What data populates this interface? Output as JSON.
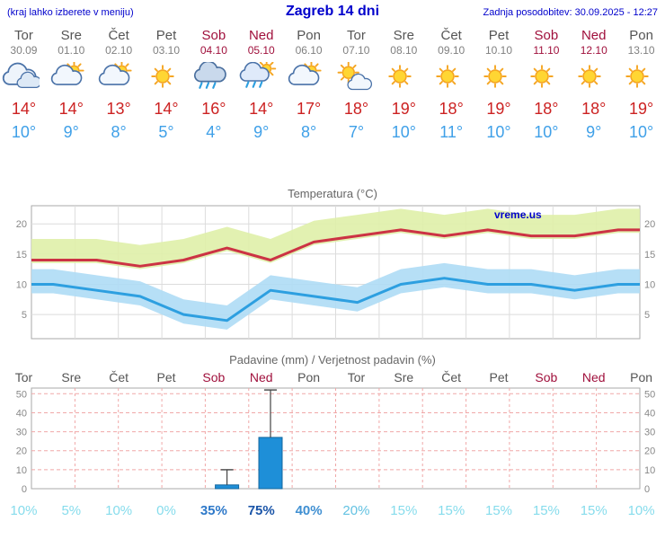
{
  "header": {
    "left_note": "(kraj lahko izberete v meniju)",
    "title": "Zagreb 14 dni",
    "updated": "Zadnja posodobitev: 30.09.2025 - 12:27"
  },
  "watermark": "vreme.us",
  "colors": {
    "header_blue": "#0000cc",
    "day_gray": "#555555",
    "weekend_red": "#a0103c",
    "date_gray": "#808080",
    "tmax_red": "#cc2222",
    "tmin_blue": "#3fa0e8",
    "chart_title_gray": "#666666",
    "grid_gray": "#dcdcdc",
    "axis_gray": "#888888",
    "plot_border": "#aaaaaa",
    "temp_max_line": "#cc3344",
    "temp_max_band": "#dff0a8",
    "temp_min_line": "#2d9fe0",
    "temp_min_band": "#aedcf5",
    "precip_bar": "#1e8fd8",
    "precip_bar_border": "#14679e",
    "precip_grid_red": "#f0a8a8",
    "whisker": "#444444"
  },
  "forecast": {
    "days": [
      {
        "name": "Tor",
        "date": "30.09",
        "weekend": false,
        "icon": "cloudy",
        "tmax_label": "14°",
        "tmin_label": "10°"
      },
      {
        "name": "Sre",
        "date": "01.10",
        "weekend": false,
        "icon": "partly-cloudy",
        "tmax_label": "14°",
        "tmin_label": "9°"
      },
      {
        "name": "Čet",
        "date": "02.10",
        "weekend": false,
        "icon": "partly-cloudy",
        "tmax_label": "13°",
        "tmin_label": "8°"
      },
      {
        "name": "Pet",
        "date": "03.10",
        "weekend": false,
        "icon": "sunny",
        "tmax_label": "14°",
        "tmin_label": "5°"
      },
      {
        "name": "Sob",
        "date": "04.10",
        "weekend": true,
        "icon": "rain",
        "tmax_label": "16°",
        "tmin_label": "4°"
      },
      {
        "name": "Ned",
        "date": "05.10",
        "weekend": true,
        "icon": "rain-sun",
        "tmax_label": "14°",
        "tmin_label": "9°"
      },
      {
        "name": "Pon",
        "date": "06.10",
        "weekend": false,
        "icon": "partly-cloudy",
        "tmax_label": "17°",
        "tmin_label": "8°"
      },
      {
        "name": "Tor",
        "date": "07.10",
        "weekend": false,
        "icon": "mostly-sunny",
        "tmax_label": "18°",
        "tmin_label": "7°"
      },
      {
        "name": "Sre",
        "date": "08.10",
        "weekend": false,
        "icon": "sunny",
        "tmax_label": "19°",
        "tmin_label": "10°"
      },
      {
        "name": "Čet",
        "date": "09.10",
        "weekend": false,
        "icon": "sunny",
        "tmax_label": "18°",
        "tmin_label": "11°"
      },
      {
        "name": "Pet",
        "date": "10.10",
        "weekend": false,
        "icon": "sunny",
        "tmax_label": "19°",
        "tmin_label": "10°"
      },
      {
        "name": "Sob",
        "date": "11.10",
        "weekend": true,
        "icon": "sunny",
        "tmax_label": "18°",
        "tmin_label": "10°"
      },
      {
        "name": "Ned",
        "date": "12.10",
        "weekend": true,
        "icon": "sunny",
        "tmax_label": "18°",
        "tmin_label": "9°"
      },
      {
        "name": "Pon",
        "date": "13.10",
        "weekend": false,
        "icon": "sunny",
        "tmax_label": "19°",
        "tmin_label": "10°"
      }
    ]
  },
  "chart_data": [
    {
      "type": "line",
      "title": "Temperatura (°C)",
      "categories": [
        "Tor 30.09",
        "Sre 01.10",
        "Čet 02.10",
        "Pet 03.10",
        "Sob 04.10",
        "Ned 05.10",
        "Pon 06.10",
        "Tor 07.10",
        "Sre 08.10",
        "Čet 09.10",
        "Pet 10.10",
        "Sob 11.10",
        "Ned 12.10",
        "Pon 13.10"
      ],
      "series": [
        {
          "name": "Tmax",
          "values": [
            14,
            14,
            13,
            14,
            16,
            14,
            17,
            18,
            19,
            18,
            19,
            18,
            18,
            19
          ]
        },
        {
          "name": "Tmin",
          "values": [
            10,
            9,
            8,
            5,
            4,
            9,
            8,
            7,
            10,
            11,
            10,
            10,
            9,
            10
          ]
        }
      ],
      "band_offsets": {
        "max_hi": 3.5,
        "max_lo": -0.5,
        "min_hi": 2.5,
        "min_lo": -1.5
      },
      "ylim": [
        1,
        23
      ],
      "yticks": [
        5,
        10,
        15,
        20
      ],
      "grid": true,
      "legend": "none",
      "watermark": "vreme.us"
    },
    {
      "type": "bar",
      "title": "Padavine (mm) / Verjetnost padavin (%)",
      "categories": [
        "Tor",
        "Sre",
        "Čet",
        "Pet",
        "Sob",
        "Ned",
        "Pon",
        "Tor",
        "Sre",
        "Čet",
        "Pet",
        "Sob",
        "Ned",
        "Pon"
      ],
      "weekend": [
        false,
        false,
        false,
        false,
        true,
        true,
        false,
        false,
        false,
        false,
        false,
        true,
        true,
        false
      ],
      "values_mm": [
        0,
        0,
        0,
        0,
        2,
        27,
        0,
        0,
        0,
        0,
        0,
        0,
        0,
        0
      ],
      "whisker_max_mm": [
        0,
        0,
        0,
        0,
        10,
        52,
        0,
        0,
        0,
        0,
        0,
        0,
        0,
        0
      ],
      "probabilities_pct": [
        10,
        5,
        10,
        0,
        35,
        75,
        40,
        20,
        15,
        15,
        15,
        15,
        15,
        10
      ],
      "prob_labels": [
        "10%",
        "5%",
        "10%",
        "0%",
        "35%",
        "75%",
        "40%",
        "20%",
        "15%",
        "15%",
        "15%",
        "15%",
        "15%",
        "10%"
      ],
      "prob_colors": [
        "#86dcec",
        "#86dcec",
        "#86dcec",
        "#86dcec",
        "#2e79c9",
        "#1b55a8",
        "#3f8fd2",
        "#63c2e2",
        "#86dcec",
        "#86dcec",
        "#86dcec",
        "#86dcec",
        "#86dcec",
        "#86dcec"
      ],
      "ylim": [
        0,
        53
      ],
      "yticks": [
        0,
        10,
        20,
        30,
        40,
        50
      ],
      "grid": true
    }
  ]
}
